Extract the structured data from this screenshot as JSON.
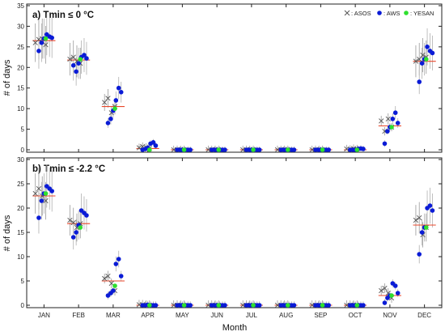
{
  "figure": {
    "x_title": "Month",
    "legend": [
      {
        "key": "asos",
        "label": ": ASOS",
        "marker": "x",
        "color": "#555555"
      },
      {
        "key": "aws",
        "label": ": AWS",
        "marker": "dot",
        "color": "#0a1bd6"
      },
      {
        "key": "yesan",
        "label": ": YESAN",
        "marker": "dot",
        "color": "#2ee02e"
      }
    ],
    "mean_line_color": "#e8472b"
  },
  "chart_data": [
    {
      "type": "scatter",
      "title": "a) Tmin ≤ 0 °C",
      "ylabel": "# of days",
      "xlabel": "Month",
      "ylim": [
        0,
        35
      ],
      "yticks": [
        0,
        5,
        10,
        15,
        20,
        25,
        30,
        35
      ],
      "categories": [
        "JAN",
        "FEB",
        "MAR",
        "APR",
        "MAY",
        "JUN",
        "JUL",
        "AUG",
        "SEP",
        "OCT",
        "NOV",
        "DEC"
      ],
      "mean": [
        26.5,
        21.8,
        10.5,
        0.3,
        0,
        0,
        0,
        0,
        0,
        0,
        5.8,
        21.5
      ],
      "series": [
        {
          "name": "ASOS",
          "marker": "x",
          "values": [
            [
              26,
              26.8,
              27,
              25.5
            ],
            [
              22,
              22.5,
              21.5,
              21
            ],
            [
              11.5,
              12.5,
              9,
              10.5
            ],
            [
              0.5,
              0.8,
              0.6,
              0.3
            ],
            [
              0,
              0,
              0,
              0
            ],
            [
              0,
              0,
              0,
              0
            ],
            [
              0,
              0,
              0,
              0
            ],
            [
              0,
              0,
              0,
              0
            ],
            [
              0,
              0,
              0,
              0
            ],
            [
              0.2,
              0.1,
              0.3,
              0.2
            ],
            [
              7,
              4.5,
              7.5,
              5.5
            ],
            [
              21.5,
              22,
              23,
              22.5
            ]
          ]
        },
        {
          "name": "AWS",
          "marker": "dot",
          "values": [
            [
              24,
              26,
              27,
              28,
              27.5,
              27.2
            ],
            [
              20.5,
              19,
              21,
              22.5,
              23,
              22.2
            ],
            [
              6.5,
              7.5,
              9.5,
              12,
              15,
              14
            ],
            [
              0,
              0.2,
              0.5,
              1.5,
              1.8,
              1
            ],
            [
              0,
              0,
              0,
              0,
              0,
              0
            ],
            [
              0,
              0,
              0,
              0,
              0,
              0
            ],
            [
              0,
              0,
              0,
              0,
              0,
              0
            ],
            [
              0,
              0,
              0,
              0,
              0,
              0
            ],
            [
              0,
              0,
              0,
              0,
              0,
              0
            ],
            [
              0,
              0,
              0,
              0.2,
              0.3,
              0.2
            ],
            [
              1.5,
              4.5,
              5.5,
              7.5,
              9,
              6.5
            ],
            [
              16.5,
              21,
              22,
              25,
              24,
              23.5
            ]
          ]
        },
        {
          "name": "YESAN",
          "marker": "dot",
          "values": [
            27,
            22,
            10,
            0,
            0,
            0,
            0,
            0,
            0,
            0,
            5.5,
            22
          ]
        }
      ]
    },
    {
      "type": "scatter",
      "title": "b) Tmin ≤ -2.2 °C",
      "ylabel": "# of days",
      "xlabel": "Month",
      "ylim": [
        0,
        30
      ],
      "yticks": [
        0,
        5,
        10,
        15,
        20,
        25,
        30
      ],
      "categories": [
        "JAN",
        "FEB",
        "MAR",
        "APR",
        "MAY",
        "JUN",
        "JUL",
        "AUG",
        "SEP",
        "OCT",
        "NOV",
        "DEC"
      ],
      "mean": [
        22.5,
        16.8,
        5,
        0,
        0,
        0,
        0,
        0,
        0,
        0,
        2,
        16.5
      ],
      "series": [
        {
          "name": "ASOS",
          "marker": "x",
          "values": [
            [
              23,
              24,
              22.5,
              21.5
            ],
            [
              17.5,
              17,
              16,
              16.8
            ],
            [
              5.5,
              6,
              4.5,
              3
            ],
            [
              0.1,
              0.1,
              0,
              0
            ],
            [
              0,
              0,
              0,
              0
            ],
            [
              0,
              0,
              0,
              0
            ],
            [
              0,
              0,
              0,
              0
            ],
            [
              0,
              0,
              0,
              0
            ],
            [
              0,
              0,
              0,
              0
            ],
            [
              0,
              0,
              0,
              0
            ],
            [
              3,
              3.5,
              2.5,
              1.5
            ],
            [
              17.5,
              18,
              14.5,
              16
            ]
          ]
        },
        {
          "name": "AWS",
          "marker": "dot",
          "values": [
            [
              18,
              21.5,
              23,
              24.5,
              24,
              23.5
            ],
            [
              14,
              15,
              16.5,
              19.5,
              19,
              18.5
            ],
            [
              2,
              2.5,
              3,
              8.5,
              9.5,
              6
            ],
            [
              0,
              0,
              0.1,
              0,
              0,
              0
            ],
            [
              0,
              0,
              0,
              0,
              0,
              0
            ],
            [
              0,
              0,
              0,
              0,
              0,
              0
            ],
            [
              0,
              0,
              0,
              0,
              0,
              0
            ],
            [
              0,
              0,
              0,
              0,
              0,
              0
            ],
            [
              0,
              0,
              0,
              0,
              0,
              0
            ],
            [
              0,
              0,
              0,
              0,
              0,
              0
            ],
            [
              0.5,
              1.5,
              2,
              4.5,
              4,
              2.5
            ],
            [
              10.5,
              15,
              16,
              20,
              20.5,
              19.5
            ]
          ]
        },
        {
          "name": "YESAN",
          "marker": "dot",
          "values": [
            23,
            16,
            4,
            0,
            0,
            0,
            0,
            0,
            0,
            0,
            2,
            16
          ]
        }
      ]
    }
  ]
}
